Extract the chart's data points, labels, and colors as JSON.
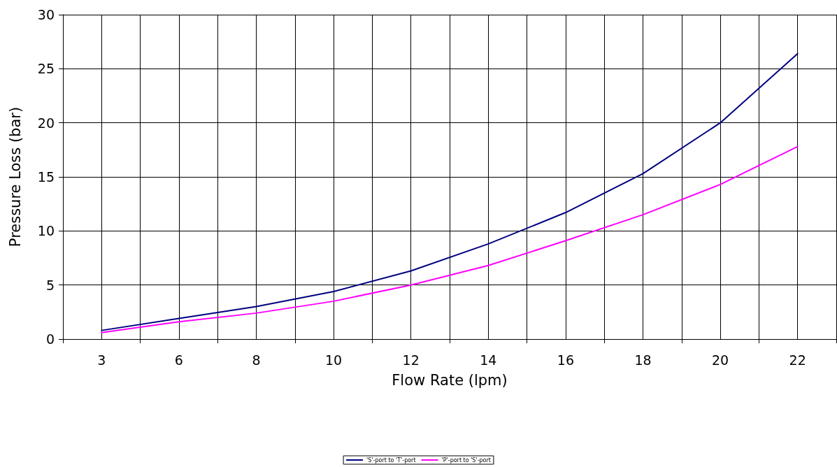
{
  "chart_data": {
    "type": "line",
    "xlabel": "Flow Rate (lpm)",
    "ylabel": "Pressure Loss (bar)",
    "categories": [
      "3",
      "6",
      "8",
      "10",
      "12",
      "14",
      "16",
      "18",
      "20",
      "22"
    ],
    "series": [
      {
        "name": "'S'-port to 'T'-port",
        "color": "#000080",
        "values": [
          0.8,
          1.9,
          3.0,
          4.4,
          6.3,
          8.8,
          11.7,
          15.3,
          20.0,
          26.4
        ]
      },
      {
        "name": "'P'-port to 'S'-port",
        "color": "#ff00ff",
        "values": [
          0.6,
          1.6,
          2.4,
          3.5,
          5.0,
          6.8,
          9.1,
          11.5,
          14.3,
          17.8
        ]
      }
    ],
    "ylim": [
      0,
      30
    ],
    "yticks": [
      0,
      5,
      10,
      15,
      20,
      25,
      30
    ],
    "grid": true,
    "legend": "bottom",
    "marker": "none",
    "line_style": "solid"
  }
}
